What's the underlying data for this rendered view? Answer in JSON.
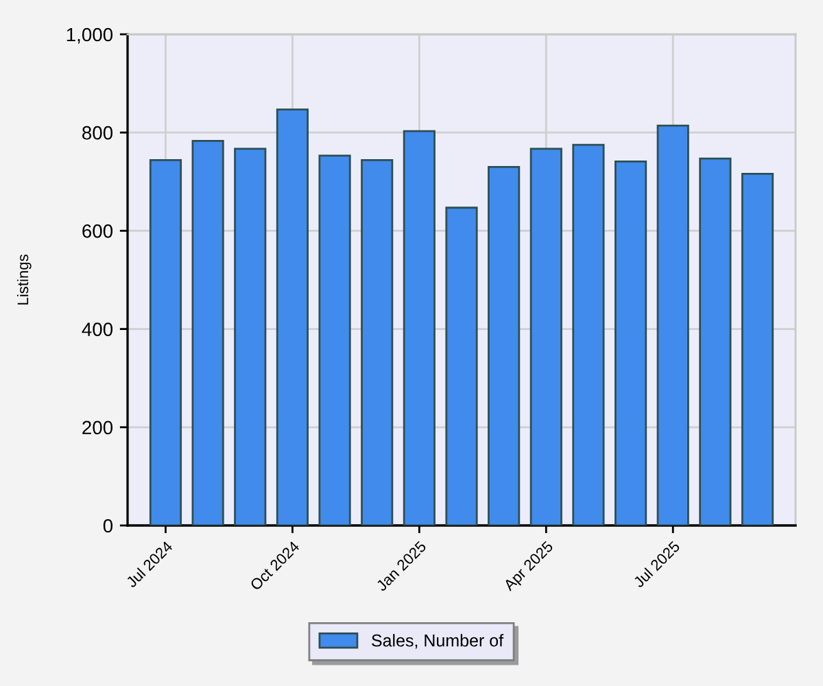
{
  "chart_data": {
    "type": "bar",
    "ylabel": "Listings",
    "categories": [
      "Jul 2024",
      null,
      null,
      "Oct 2024",
      null,
      null,
      "Jan 2025",
      null,
      null,
      "Apr 2025",
      null,
      null,
      "Jul 2025",
      null,
      null
    ],
    "series": [
      {
        "name": "Sales, Number of",
        "color": "#418bed",
        "values": [
          744,
          783,
          767,
          847,
          753,
          744,
          803,
          647,
          730,
          767,
          775,
          741,
          814,
          747,
          716
        ]
      }
    ],
    "ylim": [
      0,
      1000
    ],
    "yticks": [
      0,
      200,
      400,
      600,
      800,
      {
        "value": 1000,
        "label": "1,000"
      }
    ],
    "grid": true,
    "legend": "bottom"
  }
}
